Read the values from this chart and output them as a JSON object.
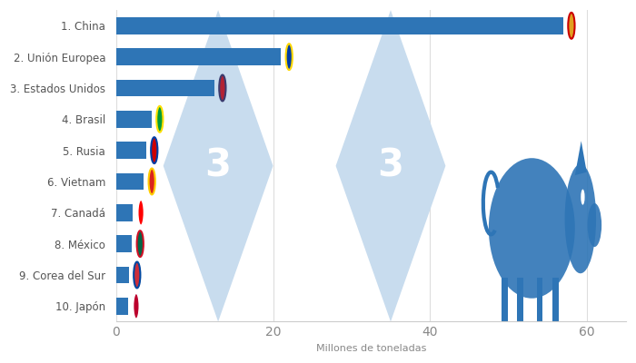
{
  "countries": [
    "1. China",
    "2. Unión Europea",
    "3. Estados Unidos",
    "4. Brasil",
    "5. Rusia",
    "6. Vietnam",
    "7. Canadá",
    "8. México",
    "9. Corea del Sur",
    "10. Japón"
  ],
  "values": [
    57.0,
    21.0,
    12.5,
    4.5,
    3.8,
    3.5,
    2.1,
    2.0,
    1.6,
    1.5
  ],
  "bar_color": "#2E75B6",
  "background_color": "#FFFFFF",
  "xlabel": "Millones de toneladas",
  "xlim": [
    0,
    65
  ],
  "xticks": [
    0,
    20,
    40,
    60
  ],
  "watermark_color": "#C8DCEE",
  "pig_color": "#2E75B6",
  "label_fontsize": 8.5,
  "xlabel_fontsize": 8
}
